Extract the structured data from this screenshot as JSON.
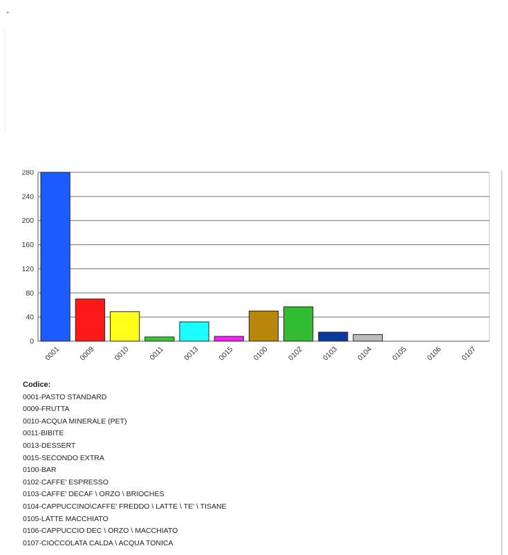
{
  "page": {
    "leading_mark": "-"
  },
  "chart_data": {
    "type": "bar",
    "categories": [
      "0001",
      "0009",
      "0010",
      "0011",
      "0013",
      "0015",
      "0100",
      "0102",
      "0103",
      "0104",
      "0105",
      "0106",
      "0107"
    ],
    "values": [
      280,
      70,
      49,
      7,
      32,
      8,
      50,
      57,
      15,
      11,
      0,
      0,
      0
    ],
    "colors": [
      "#1a5cff",
      "#ff1a1a",
      "#ffff1a",
      "#33cc33",
      "#1affff",
      "#ff1aff",
      "#b8860b",
      "#33bb33",
      "#0a3a9e",
      "#bbbbbb",
      "#bbbbbb",
      "#bbbbbb",
      "#bbbbbb"
    ],
    "ylim": [
      0,
      280
    ],
    "yticks": [
      0,
      40,
      80,
      120,
      160,
      200,
      240,
      280
    ],
    "grid": true
  },
  "legend": {
    "title": "Codice:",
    "items": [
      "0001-PASTO STANDARD",
      "0009-FRUTTA",
      "0010-ACQUA MINERALE (PET)",
      "0011-BIBITE",
      "0013-DESSERT",
      "0015-SECONDO EXTRA",
      "0100-BAR",
      "0102-CAFFE' ESPRESSO",
      "0103-CAFFE' DECAF \\ ORZO \\ BRIOCHES",
      "0104-CAPPUCCINO\\CAFFE' FREDDO \\ LATTE \\ TE' \\ TISANE",
      "0105-LATTE MACCHIATO",
      "0106-CAPPUCCIO DEC \\ ORZO \\ MACCHIATO",
      "0107-CIOCCOLATA CALDA \\ ACQUA TONICA"
    ]
  }
}
